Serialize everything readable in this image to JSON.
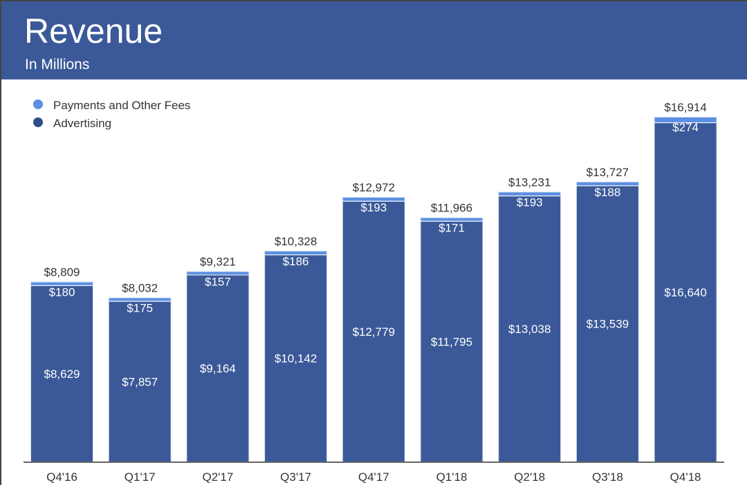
{
  "chart_data": {
    "type": "bar",
    "stacked": true,
    "title": "Revenue",
    "subtitle": "In Millions",
    "categories": [
      "Q4'16",
      "Q1'17",
      "Q2'17",
      "Q3'17",
      "Q4'17",
      "Q1'18",
      "Q2'18",
      "Q3'18",
      "Q4'18"
    ],
    "series": [
      {
        "name": "Advertising",
        "color": "#3b5998",
        "values": [
          8629,
          7857,
          9164,
          10142,
          12779,
          11795,
          13038,
          13539,
          16640
        ],
        "labels": [
          "$8,629",
          "$7,857",
          "$9,164",
          "$10,142",
          "$12,779",
          "$11,795",
          "$13,038",
          "$13,539",
          "$16,640"
        ]
      },
      {
        "name": "Payments and Other Fees",
        "color": "#5b8fe3",
        "values": [
          180,
          175,
          157,
          186,
          193,
          171,
          193,
          188,
          274
        ],
        "labels": [
          "$180",
          "$175",
          "$157",
          "$186",
          "$193",
          "$171",
          "$193",
          "$188",
          "$274"
        ]
      }
    ],
    "totals": [
      8809,
      8032,
      9321,
      10328,
      12972,
      11966,
      13231,
      13727,
      16914
    ],
    "total_labels": [
      "$8,809",
      "$8,032",
      "$9,321",
      "$10,328",
      "$12,972",
      "$11,966",
      "$13,231",
      "$13,727",
      "$16,914"
    ],
    "legend": [
      "Payments and Other Fees",
      "Advertising"
    ],
    "legend_position": "top-left",
    "xlabel": "",
    "ylabel": "",
    "ylim": [
      0,
      16914
    ],
    "grid": false
  }
}
